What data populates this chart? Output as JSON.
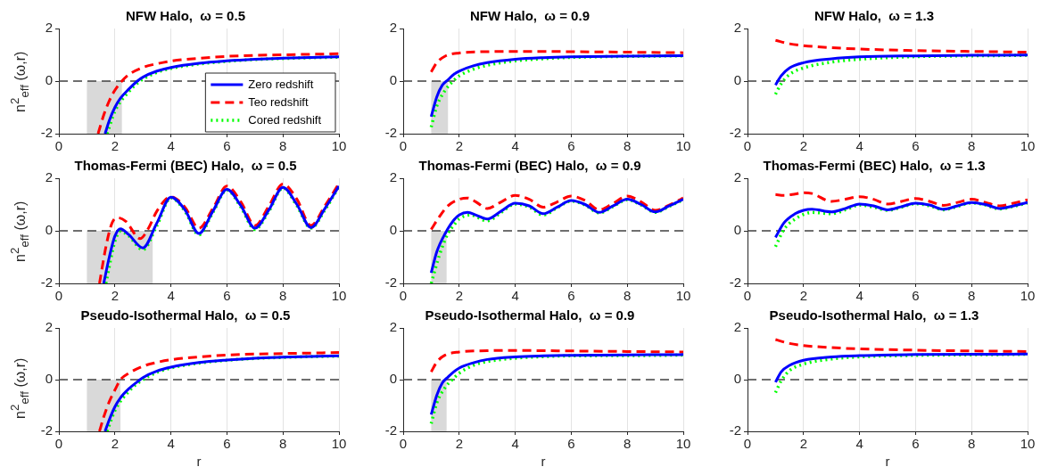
{
  "chart_data": [
    {
      "type": "line",
      "title": "NFW Halo,  ω = 0.5",
      "ylabel": "n$^{2}$$_{eff}$ (ω,r)",
      "xlim": [
        0,
        10
      ],
      "xticks": [
        0,
        2,
        4,
        6,
        8,
        10
      ],
      "ylim": [
        -2,
        2
      ],
      "yticks": [
        -2,
        0,
        2
      ],
      "grid": "x",
      "legend": "bottom right",
      "ref_lines": [
        {
          "axis": "y",
          "value": 0,
          "color": "#404040",
          "line_style": "dashed"
        }
      ],
      "bands": [
        {
          "axis": "x",
          "from": 1,
          "to": 2.25,
          "color": "#d9d9d9"
        }
      ],
      "series": [
        {
          "name": "Zero redshift",
          "color": "#0000ff",
          "line_style": "solid",
          "x": [
            1.65,
            1.8,
            2,
            2.2,
            2.5,
            2.8,
            3,
            3.5,
            4,
            5,
            6,
            7,
            8,
            9,
            10
          ],
          "values": [
            -2,
            -1.5,
            -1.0,
            -0.65,
            -0.3,
            0,
            0.15,
            0.38,
            0.52,
            0.68,
            0.77,
            0.83,
            0.87,
            0.9,
            0.92
          ]
        },
        {
          "name": "Teo redshift",
          "color": "#ff0000",
          "line_style": "dashed",
          "x": [
            1.4,
            1.6,
            1.8,
            2,
            2.25,
            2.5,
            3,
            3.5,
            4,
            5,
            6,
            7,
            8,
            9,
            10
          ],
          "values": [
            -2,
            -1.3,
            -0.75,
            -0.35,
            0,
            0.25,
            0.52,
            0.66,
            0.76,
            0.87,
            0.94,
            0.98,
            1.0,
            1.02,
            1.04
          ]
        },
        {
          "name": "Cored redshift",
          "color": "#00ff00",
          "line_style": "dotted",
          "x": [
            1.72,
            2,
            2.5,
            2.9,
            3.5,
            4,
            5,
            6,
            7,
            8,
            9,
            10
          ],
          "values": [
            -2,
            -1.15,
            -0.4,
            0,
            0.33,
            0.48,
            0.65,
            0.75,
            0.82,
            0.86,
            0.89,
            0.91
          ]
        }
      ]
    },
    {
      "type": "line",
      "title": "NFW Halo,  ω = 0.9",
      "xlim": [
        0,
        10
      ],
      "xticks": [
        0,
        2,
        4,
        6,
        8,
        10
      ],
      "ylim": [
        -2,
        2
      ],
      "yticks": [
        -2,
        0,
        2
      ],
      "grid": "x",
      "ref_lines": [
        {
          "axis": "y",
          "value": 0,
          "color": "#404040",
          "line_style": "dashed"
        }
      ],
      "bands": [
        {
          "axis": "x",
          "from": 1,
          "to": 1.6,
          "color": "#d9d9d9"
        }
      ],
      "series": [
        {
          "color": "#0000ff",
          "line_style": "solid",
          "x": [
            1,
            1.2,
            1.4,
            1.6,
            1.8,
            2,
            2.5,
            3,
            4,
            5,
            6,
            8,
            10
          ],
          "values": [
            -1.35,
            -0.6,
            -0.15,
            0.05,
            0.25,
            0.38,
            0.58,
            0.7,
            0.83,
            0.89,
            0.92,
            0.95,
            0.97
          ]
        },
        {
          "color": "#ff0000",
          "line_style": "dashed",
          "x": [
            1,
            1.2,
            1.5,
            2,
            3,
            4,
            5,
            6,
            8,
            10
          ],
          "values": [
            0.35,
            0.7,
            0.95,
            1.07,
            1.12,
            1.13,
            1.13,
            1.12,
            1.1,
            1.08
          ]
        },
        {
          "color": "#00ff00",
          "line_style": "dotted",
          "x": [
            1,
            1.2,
            1.5,
            1.8,
            2,
            2.5,
            3,
            4,
            5,
            6,
            8,
            10
          ],
          "values": [
            -1.75,
            -0.95,
            -0.35,
            0.02,
            0.2,
            0.45,
            0.6,
            0.77,
            0.85,
            0.9,
            0.94,
            0.96
          ]
        }
      ]
    },
    {
      "type": "line",
      "title": "NFW Halo,  ω = 1.3",
      "xlim": [
        0,
        10
      ],
      "xticks": [
        0,
        2,
        4,
        6,
        8,
        10
      ],
      "ylim": [
        -2,
        2
      ],
      "yticks": [
        -2,
        0,
        2
      ],
      "grid": "x",
      "ref_lines": [
        {
          "axis": "y",
          "value": 0,
          "color": "#404040",
          "line_style": "dashed"
        }
      ],
      "series": [
        {
          "color": "#0000ff",
          "line_style": "solid",
          "x": [
            1,
            1.2,
            1.5,
            2,
            3,
            4,
            6,
            8,
            10
          ],
          "values": [
            -0.15,
            0.2,
            0.5,
            0.7,
            0.85,
            0.92,
            0.96,
            0.98,
            0.99
          ]
        },
        {
          "color": "#ff0000",
          "line_style": "dashed",
          "x": [
            1,
            1.5,
            2,
            3,
            4,
            6,
            8,
            10
          ],
          "values": [
            1.55,
            1.42,
            1.35,
            1.27,
            1.22,
            1.16,
            1.13,
            1.1
          ]
        },
        {
          "color": "#00ff00",
          "line_style": "dotted",
          "x": [
            1,
            1.2,
            1.5,
            2,
            3,
            4,
            6,
            8,
            10
          ],
          "values": [
            -0.5,
            -0.1,
            0.25,
            0.5,
            0.72,
            0.83,
            0.93,
            0.96,
            0.98
          ]
        }
      ]
    },
    {
      "type": "line",
      "title": "Thomas-Fermi (BEC) Halo,  ω = 0.5",
      "ylabel": "n$^{2}$$_{eff}$ (ω,r)",
      "xlim": [
        0,
        10
      ],
      "xticks": [
        0,
        2,
        4,
        6,
        8,
        10
      ],
      "ylim": [
        -2,
        2
      ],
      "yticks": [
        -2,
        0,
        2
      ],
      "grid": "x",
      "ref_lines": [
        {
          "axis": "y",
          "value": 0,
          "color": "#404040",
          "line_style": "dashed"
        }
      ],
      "bands": [
        {
          "axis": "x",
          "from": 1,
          "to": 3.35,
          "color": "#d9d9d9"
        }
      ],
      "series": [
        {
          "color": "#0000ff",
          "line_style": "solid",
          "x": [
            1.6,
            1.8,
            2,
            2.2,
            2.5,
            3,
            3.5,
            4,
            4.5,
            5,
            5.5,
            6,
            6.5,
            7,
            7.5,
            8,
            8.5,
            9,
            9.5,
            10
          ],
          "values": [
            -2,
            -1.0,
            -0.2,
            0.08,
            -0.15,
            -0.65,
            0.3,
            1.28,
            0.8,
            -0.1,
            0.75,
            1.58,
            0.95,
            0.1,
            0.8,
            1.65,
            1.0,
            0.12,
            0.85,
            1.7
          ]
        },
        {
          "color": "#ff0000",
          "line_style": "dashed",
          "x": [
            1.45,
            1.7,
            1.9,
            2.1,
            2.4,
            2.9,
            3.2,
            3.5,
            4,
            4.5,
            5,
            5.5,
            6,
            6.5,
            7,
            7.5,
            8,
            8.5,
            9,
            9.5,
            10
          ],
          "values": [
            -2,
            -0.5,
            0.3,
            0.5,
            0.35,
            -0.3,
            0.1,
            0.75,
            1.3,
            0.9,
            0.1,
            0.85,
            1.7,
            1.1,
            0.2,
            0.95,
            1.78,
            1.2,
            0.2,
            0.95,
            1.8
          ]
        },
        {
          "color": "#00ff00",
          "line_style": "dotted",
          "x": [
            1.68,
            2,
            2.2,
            2.5,
            3,
            3.5,
            4,
            4.5,
            5,
            5.5,
            6,
            6.5,
            7,
            7.5,
            8,
            8.5,
            9,
            9.5,
            10
          ],
          "values": [
            -2,
            -0.4,
            -0.02,
            -0.2,
            -0.72,
            0.2,
            1.25,
            0.75,
            -0.15,
            0.7,
            1.55,
            0.9,
            0.05,
            0.75,
            1.62,
            0.95,
            0.1,
            0.8,
            1.68
          ]
        }
      ]
    },
    {
      "type": "line",
      "title": "Thomas-Fermi (BEC) Halo,  ω = 0.9",
      "xlim": [
        0,
        10
      ],
      "xticks": [
        0,
        2,
        4,
        6,
        8,
        10
      ],
      "ylim": [
        -2,
        2
      ],
      "yticks": [
        -2,
        0,
        2
      ],
      "grid": "x",
      "ref_lines": [
        {
          "axis": "y",
          "value": 0,
          "color": "#404040",
          "line_style": "dashed"
        }
      ],
      "bands": [
        {
          "axis": "x",
          "from": 1,
          "to": 1.55,
          "color": "#d9d9d9"
        }
      ],
      "series": [
        {
          "color": "#0000ff",
          "line_style": "solid",
          "x": [
            1,
            1.2,
            1.5,
            1.8,
            2,
            2.3,
            2.6,
            3,
            3.5,
            4,
            4.5,
            5,
            5.5,
            6,
            6.5,
            7,
            7.5,
            8,
            8.5,
            9,
            9.5,
            10
          ],
          "values": [
            -1.6,
            -0.8,
            -0.1,
            0.4,
            0.6,
            0.7,
            0.6,
            0.45,
            0.75,
            1.05,
            0.95,
            0.65,
            0.9,
            1.15,
            1.0,
            0.7,
            0.95,
            1.2,
            1.0,
            0.72,
            0.95,
            1.2
          ]
        },
        {
          "color": "#ff0000",
          "line_style": "dashed",
          "x": [
            1,
            1.3,
            1.6,
            2,
            2.3,
            2.6,
            3,
            3.5,
            4,
            4.5,
            5,
            5.5,
            6,
            6.5,
            7,
            7.5,
            8,
            8.5,
            9,
            9.5,
            10
          ],
          "values": [
            0.05,
            0.55,
            0.95,
            1.2,
            1.25,
            1.1,
            0.85,
            1.1,
            1.35,
            1.2,
            0.9,
            1.1,
            1.32,
            1.15,
            0.8,
            1.05,
            1.32,
            1.1,
            0.78,
            0.98,
            1.25
          ]
        },
        {
          "color": "#00ff00",
          "line_style": "dotted",
          "x": [
            1,
            1.3,
            1.6,
            1.8,
            2,
            2.4,
            3,
            3.5,
            4,
            4.5,
            5,
            5.5,
            6,
            6.5,
            7,
            7.5,
            8,
            8.5,
            9,
            9.5,
            10
          ],
          "values": [
            -2,
            -0.9,
            -0.1,
            0.2,
            0.45,
            0.6,
            0.38,
            0.7,
            1.02,
            0.9,
            0.6,
            0.88,
            1.13,
            0.98,
            0.68,
            0.93,
            1.18,
            0.98,
            0.7,
            0.93,
            1.18
          ]
        }
      ]
    },
    {
      "type": "line",
      "title": "Thomas-Fermi (BEC) Halo,  ω = 1.3",
      "xlim": [
        0,
        10
      ],
      "xticks": [
        0,
        2,
        4,
        6,
        8,
        10
      ],
      "ylim": [
        -2,
        2
      ],
      "yticks": [
        -2,
        0,
        2
      ],
      "grid": "x",
      "ref_lines": [
        {
          "axis": "y",
          "value": 0,
          "color": "#404040",
          "line_style": "dashed"
        }
      ],
      "series": [
        {
          "color": "#0000ff",
          "line_style": "solid",
          "x": [
            1,
            1.3,
            1.7,
            2,
            2.3,
            3,
            3.5,
            4,
            4.5,
            5,
            5.5,
            6,
            6.5,
            7,
            7.5,
            8,
            8.5,
            9,
            9.5,
            10
          ],
          "values": [
            -0.25,
            0.3,
            0.65,
            0.78,
            0.82,
            0.72,
            0.85,
            1.02,
            0.95,
            0.8,
            0.92,
            1.05,
            0.98,
            0.82,
            0.95,
            1.08,
            1.0,
            0.85,
            0.95,
            1.08
          ]
        },
        {
          "color": "#ff0000",
          "line_style": "dashed",
          "x": [
            1,
            1.3,
            1.7,
            2,
            2.3,
            3,
            3.5,
            4,
            4.5,
            5,
            5.5,
            6,
            6.5,
            7,
            7.5,
            8,
            8.5,
            9,
            9.5,
            10
          ],
          "values": [
            1.38,
            1.35,
            1.4,
            1.45,
            1.42,
            1.12,
            1.2,
            1.3,
            1.2,
            1.02,
            1.12,
            1.23,
            1.12,
            0.97,
            1.08,
            1.2,
            1.08,
            0.95,
            1.05,
            1.18
          ]
        },
        {
          "color": "#00ff00",
          "line_style": "dotted",
          "x": [
            1,
            1.3,
            1.7,
            2,
            2.3,
            3,
            3.5,
            4,
            4.5,
            5,
            5.5,
            6,
            6.5,
            7,
            7.5,
            8,
            8.5,
            9,
            9.5,
            10
          ],
          "values": [
            -0.6,
            0.05,
            0.45,
            0.62,
            0.7,
            0.65,
            0.8,
            0.98,
            0.9,
            0.78,
            0.9,
            1.03,
            0.95,
            0.8,
            0.93,
            1.06,
            0.98,
            0.83,
            0.93,
            1.06
          ]
        }
      ]
    },
    {
      "type": "line",
      "title": "Pseudo-Isothermal Halo,  ω = 0.5",
      "xlabel": "r",
      "ylabel": "n$^{2}$$_{eff}$ (ω,r)",
      "xlim": [
        0,
        10
      ],
      "xticks": [
        0,
        2,
        4,
        6,
        8,
        10
      ],
      "ylim": [
        -2,
        2
      ],
      "yticks": [
        -2,
        0,
        2
      ],
      "grid": "x",
      "ref_lines": [
        {
          "axis": "y",
          "value": 0,
          "color": "#404040",
          "line_style": "dashed"
        }
      ],
      "bands": [
        {
          "axis": "x",
          "from": 1,
          "to": 2.2,
          "color": "#d9d9d9"
        }
      ],
      "series": [
        {
          "color": "#0000ff",
          "line_style": "solid",
          "x": [
            1.65,
            1.8,
            2,
            2.2,
            2.5,
            2.9,
            3,
            3.5,
            4,
            5,
            6,
            7,
            8,
            9,
            10
          ],
          "values": [
            -2,
            -1.55,
            -1.05,
            -0.7,
            -0.35,
            0,
            0.08,
            0.33,
            0.48,
            0.66,
            0.76,
            0.83,
            0.87,
            0.9,
            0.92
          ]
        },
        {
          "color": "#ff0000",
          "line_style": "dashed",
          "x": [
            1.45,
            1.6,
            1.8,
            2,
            2.2,
            2.5,
            3,
            3.5,
            4,
            5,
            6,
            7,
            8,
            9,
            10
          ],
          "values": [
            -2,
            -1.45,
            -0.85,
            -0.4,
            0,
            0.25,
            0.52,
            0.67,
            0.77,
            0.88,
            0.95,
            0.99,
            1.01,
            1.03,
            1.05
          ]
        },
        {
          "color": "#00ff00",
          "line_style": "dotted",
          "x": [
            1.72,
            2,
            2.5,
            3,
            3.5,
            4,
            5,
            6,
            7,
            8,
            9,
            10
          ],
          "values": [
            -2,
            -1.2,
            -0.45,
            0,
            0.28,
            0.45,
            0.64,
            0.75,
            0.82,
            0.86,
            0.89,
            0.91
          ]
        }
      ]
    },
    {
      "type": "line",
      "title": "Pseudo-Isothermal Halo,  ω = 0.9",
      "xlabel": "r",
      "xlim": [
        0,
        10
      ],
      "xticks": [
        0,
        2,
        4,
        6,
        8,
        10
      ],
      "ylim": [
        -2,
        2
      ],
      "yticks": [
        -2,
        0,
        2
      ],
      "grid": "x",
      "ref_lines": [
        {
          "axis": "y",
          "value": 0,
          "color": "#404040",
          "line_style": "dashed"
        }
      ],
      "bands": [
        {
          "axis": "x",
          "from": 1,
          "to": 1.55,
          "color": "#d9d9d9"
        }
      ],
      "series": [
        {
          "color": "#0000ff",
          "line_style": "solid",
          "x": [
            1,
            1.2,
            1.4,
            1.6,
            1.8,
            2,
            2.5,
            3,
            4,
            5,
            6,
            8,
            10
          ],
          "values": [
            -1.35,
            -0.6,
            -0.12,
            0.1,
            0.3,
            0.45,
            0.65,
            0.78,
            0.88,
            0.92,
            0.94,
            0.96,
            0.97
          ]
        },
        {
          "color": "#ff0000",
          "line_style": "dashed",
          "x": [
            1,
            1.2,
            1.5,
            2,
            3,
            4,
            5,
            6,
            8,
            10
          ],
          "values": [
            0.3,
            0.68,
            0.95,
            1.07,
            1.12,
            1.13,
            1.12,
            1.11,
            1.09,
            1.07
          ]
        },
        {
          "color": "#00ff00",
          "line_style": "dotted",
          "x": [
            1,
            1.2,
            1.5,
            1.8,
            2,
            2.5,
            3,
            4,
            5,
            6,
            8,
            10
          ],
          "values": [
            -1.7,
            -0.9,
            -0.3,
            0.05,
            0.25,
            0.55,
            0.7,
            0.83,
            0.89,
            0.92,
            0.93,
            0.95
          ]
        }
      ]
    },
    {
      "type": "line",
      "title": "Pseudo-Isothermal Halo,  ω = 1.3",
      "xlabel": "r",
      "xlim": [
        0,
        10
      ],
      "xticks": [
        0,
        2,
        4,
        6,
        8,
        10
      ],
      "ylim": [
        -2,
        2
      ],
      "yticks": [
        -2,
        0,
        2
      ],
      "grid": "x",
      "ref_lines": [
        {
          "axis": "y",
          "value": 0,
          "color": "#404040",
          "line_style": "dashed"
        }
      ],
      "series": [
        {
          "color": "#0000ff",
          "line_style": "solid",
          "x": [
            1,
            1.2,
            1.5,
            2,
            3,
            4,
            6,
            8,
            10
          ],
          "values": [
            -0.1,
            0.3,
            0.55,
            0.75,
            0.88,
            0.93,
            0.97,
            0.98,
            0.99
          ]
        },
        {
          "color": "#ff0000",
          "line_style": "dashed",
          "x": [
            1,
            1.5,
            2,
            3,
            4,
            6,
            8,
            10
          ],
          "values": [
            1.55,
            1.4,
            1.32,
            1.24,
            1.19,
            1.14,
            1.11,
            1.09
          ]
        },
        {
          "color": "#00ff00",
          "line_style": "dotted",
          "x": [
            1,
            1.2,
            1.5,
            2,
            3,
            4,
            6,
            8,
            10
          ],
          "values": [
            -0.5,
            -0.05,
            0.35,
            0.6,
            0.8,
            0.88,
            0.94,
            0.96,
            0.98
          ]
        }
      ]
    }
  ]
}
